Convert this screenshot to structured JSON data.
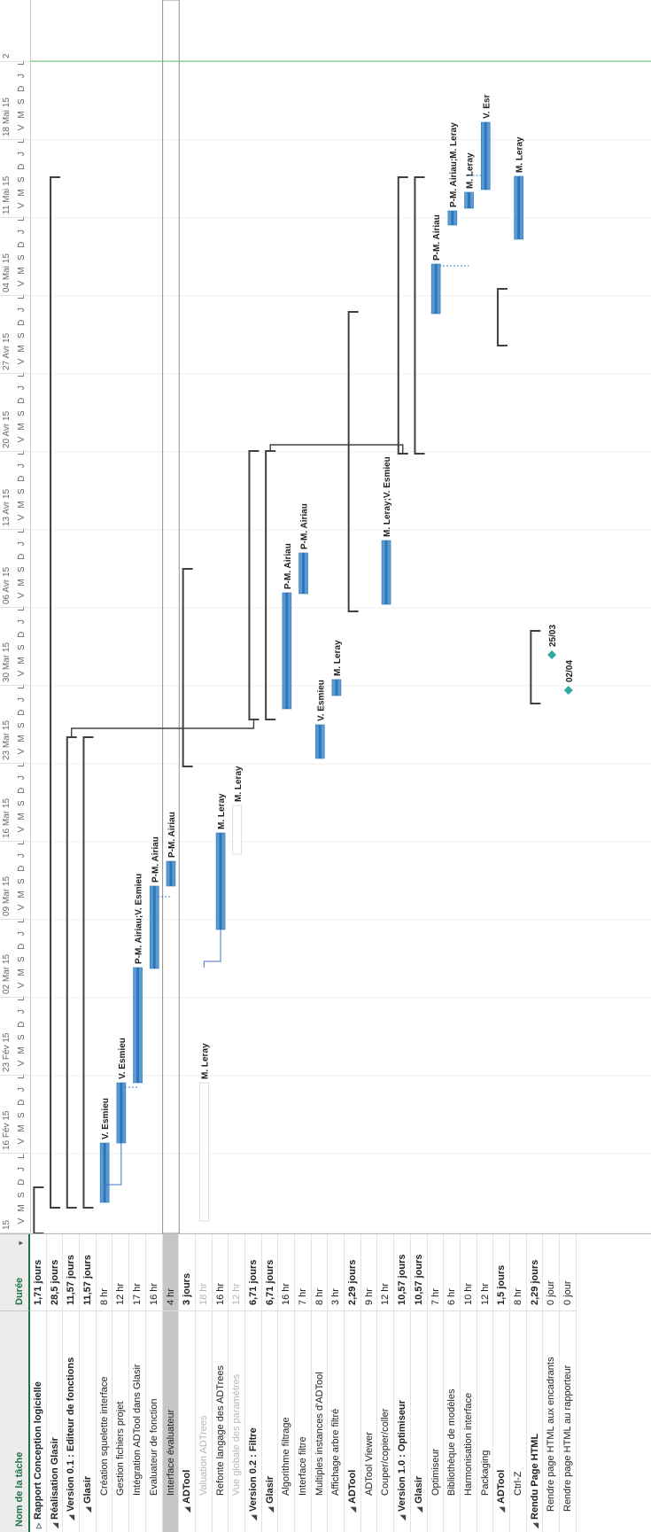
{
  "grid": {
    "col_name": "Nom de la tâche",
    "col_dur": "Durée",
    "tasks": [
      {
        "name": "Rapport Conception logicielle",
        "duration": "1,71 jours",
        "level": 0,
        "summary": true,
        "collapsed": true
      },
      {
        "name": "Réalisation Glasir",
        "duration": "28,5 jours",
        "level": 0,
        "summary": true
      },
      {
        "name": "Version 0.1 : Editeur de fonctions",
        "duration": "11,57 jours",
        "level": 1,
        "summary": true
      },
      {
        "name": "Glasir",
        "duration": "11,57 jours",
        "level": 2,
        "summary": true
      },
      {
        "name": "Création squelette interface",
        "duration": "8 hr",
        "level": 3
      },
      {
        "name": "Gestion fichiers projet",
        "duration": "12 hr",
        "level": 3
      },
      {
        "name": "Intégration ADTool dans Glasir",
        "duration": "17 hr",
        "level": 3
      },
      {
        "name": "Evaluateur de fonction",
        "duration": "16 hr",
        "level": 3
      },
      {
        "name": "Interface évaluateur",
        "duration": "4 hr",
        "level": 3,
        "selected": true
      },
      {
        "name": "ADTool",
        "duration": "3 jours",
        "level": 2,
        "summary": true
      },
      {
        "name": "Valuation ADTrees",
        "duration": "18 hr",
        "level": 3,
        "inactive": true
      },
      {
        "name": "Refonte langage des ADTrees",
        "duration": "16 hr",
        "level": 3
      },
      {
        "name": "Vue globale des paramètres",
        "duration": "12 hr",
        "level": 3,
        "inactive": true
      },
      {
        "name": "Version 0.2 : Filtre",
        "duration": "6,71 jours",
        "level": 1,
        "summary": true
      },
      {
        "name": "Glasir",
        "duration": "6,71 jours",
        "level": 2,
        "summary": true
      },
      {
        "name": "Algorithme filtrage",
        "duration": "16 hr",
        "level": 3
      },
      {
        "name": "Interface filtre",
        "duration": "7 hr",
        "level": 3
      },
      {
        "name": "Multiples instances d'ADTool",
        "duration": "8 hr",
        "level": 3
      },
      {
        "name": "Affichage arbre filtré",
        "duration": "3 hr",
        "level": 3
      },
      {
        "name": "ADTool",
        "duration": "2,29 jours",
        "level": 2,
        "summary": true
      },
      {
        "name": "ADTool Viewer",
        "duration": "9 hr",
        "level": 3
      },
      {
        "name": "Couper/copier/coller",
        "duration": "12 hr",
        "level": 3
      },
      {
        "name": "Version 1.0 : Optimiseur",
        "duration": "10,57 jours",
        "level": 1,
        "summary": true
      },
      {
        "name": "Glasir",
        "duration": "10,57 jours",
        "level": 2,
        "summary": true
      },
      {
        "name": "Optimiseur",
        "duration": "7 hr",
        "level": 3
      },
      {
        "name": "Bibliothèque de modèles",
        "duration": "6 hr",
        "level": 3
      },
      {
        "name": "Harmonisation interface",
        "duration": "10 hr",
        "level": 3
      },
      {
        "name": "Packaging",
        "duration": "12 hr",
        "level": 3
      },
      {
        "name": "ADTool",
        "duration": "1,5 jours",
        "level": 2,
        "summary": true
      },
      {
        "name": "Ctrl-Z",
        "duration": "8 hr",
        "level": 3
      },
      {
        "name": "Rendu Page HTML",
        "duration": "2,29 jours",
        "level": 0,
        "summary": true
      },
      {
        "name": "Rendre page HTML aux encadrants",
        "duration": "0 jour",
        "level": 1
      },
      {
        "name": "Rendre page HTML au rapporteur",
        "duration": "0 jour",
        "level": 1
      }
    ]
  },
  "timescale": {
    "weeks": [
      "15",
      "16 Fév 15",
      "23 Fév 15",
      "02 Mar 15",
      "09 Mar 15",
      "16 Mar 15",
      "23 Mar 15",
      "30 Mar 15",
      "06 Avr 15",
      "13 Avr 15",
      "20 Avr 15",
      "27 Avr 15",
      "04 Mai 15",
      "11 Mai 15",
      "18 Mai 15",
      "2"
    ],
    "day_letters": [
      "V",
      "M",
      "S",
      "D",
      "J",
      "L"
    ]
  },
  "bars": [
    {
      "row": 4,
      "label": "V. Esmieu"
    },
    {
      "row": 5,
      "label": "V. Esmieu"
    },
    {
      "row": 6,
      "label": "P-M. Airiau;V. Esmieu"
    },
    {
      "row": 7,
      "label": "P-M. Airiau"
    },
    {
      "row": 8,
      "label": "P-M. Airiau"
    },
    {
      "row": 10,
      "label": "M. Leray"
    },
    {
      "row": 11,
      "label": "M. Leray"
    },
    {
      "row": 12,
      "label": "M. Leray"
    },
    {
      "row": 15,
      "label": "P-M. Airiau"
    },
    {
      "row": 16,
      "label": "P-M. Airiau"
    },
    {
      "row": 17,
      "label": "V. Esmieu"
    },
    {
      "row": 18,
      "label": "M. Leray"
    },
    {
      "row": 21,
      "label": "M. Leray;V. Esmieu"
    },
    {
      "row": 24,
      "label": "P-M. Airiau"
    },
    {
      "row": 25,
      "label": "P-M. Airiau;M. Leray"
    },
    {
      "row": 26,
      "label": "M. Leray"
    },
    {
      "row": 27,
      "label": "V. Esr"
    },
    {
      "row": 29,
      "label": "M. Leray"
    }
  ],
  "milestones": [
    {
      "row": 31,
      "label": "25/03"
    },
    {
      "row": 32,
      "label": "02/04"
    }
  ],
  "colors": {
    "bar": "#5b9bd5",
    "bar_dark": "#2e75b6",
    "milestone": "#2eaaa0",
    "summary": "#404040",
    "today_line": "#70c070",
    "header_accent": "#217346"
  }
}
